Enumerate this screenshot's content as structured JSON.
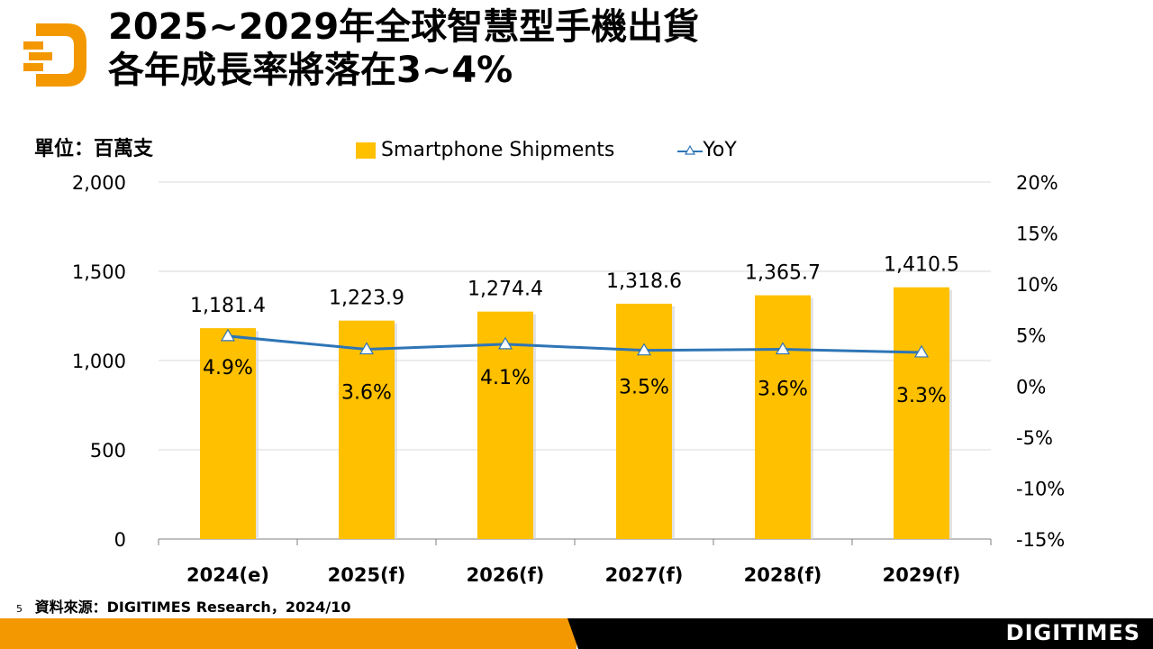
{
  "header": {
    "title_line1": "2025~2029年全球智慧型手機出貨",
    "title_line2": "各年成長率將落在3~4%"
  },
  "unit_label": "單位：百萬支",
  "legend": {
    "bar_label": "Smartphone Shipments",
    "line_label": "YoY"
  },
  "footer": {
    "page_number": "5",
    "source": "資料來源：DIGITIMES Research，2024/10",
    "brand": "DIGITIMES"
  },
  "colors": {
    "bar": "#FFC000",
    "line": "#2E75B6",
    "brand_orange": "#F39800"
  },
  "chart_data": {
    "type": "bar",
    "title": "2025~2029年全球智慧型手機出貨各年成長率將落在3~4%",
    "categories": [
      "2024(e)",
      "2025(f)",
      "2026(f)",
      "2027(f)",
      "2028(f)",
      "2029(f)"
    ],
    "series": [
      {
        "name": "Smartphone Shipments",
        "type": "bar",
        "axis": "left",
        "values": [
          1181.4,
          1223.9,
          1274.4,
          1318.6,
          1365.7,
          1410.5
        ],
        "labels": [
          "1,181.4",
          "1,223.9",
          "1,274.4",
          "1,318.6",
          "1,365.7",
          "1,410.5"
        ]
      },
      {
        "name": "YoY",
        "type": "line",
        "axis": "right",
        "marker": "triangle",
        "values": [
          4.9,
          3.6,
          4.1,
          3.5,
          3.6,
          3.3
        ],
        "labels": [
          "4.9%",
          "3.6%",
          "4.1%",
          "3.5%",
          "3.6%",
          "3.3%"
        ]
      }
    ],
    "ylabel": "單位：百萬支",
    "ylim": [
      0,
      2000
    ],
    "yticks": [
      0,
      500,
      1000,
      1500,
      2000
    ],
    "ytick_labels": [
      "0",
      "500",
      "1,000",
      "1,500",
      "2,000"
    ],
    "y2lim": [
      -15,
      20
    ],
    "y2ticks": [
      -15,
      -10,
      -5,
      0,
      5,
      10,
      15,
      20
    ],
    "y2tick_labels": [
      "-15%",
      "-10%",
      "-5%",
      "0%",
      "5%",
      "10%",
      "15%",
      "20%"
    ],
    "grid": true,
    "legend_position": "top"
  }
}
